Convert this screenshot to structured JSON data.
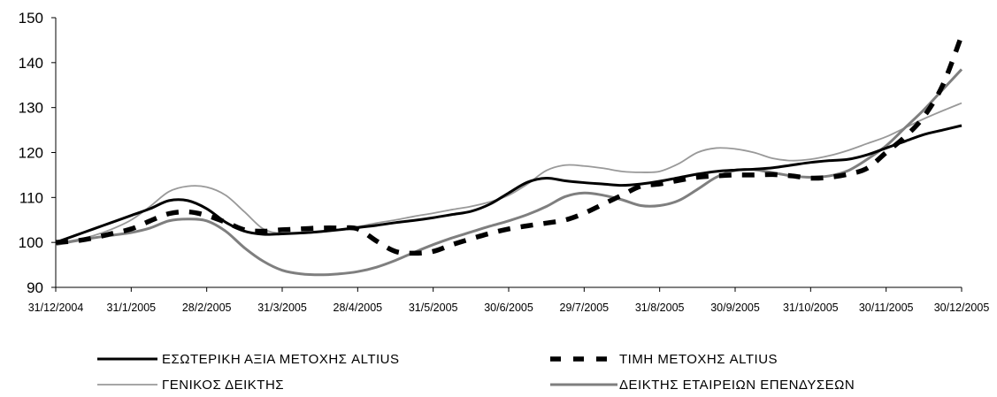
{
  "chart_data": {
    "type": "line",
    "title": "",
    "xlabel": "",
    "ylabel": "",
    "ylim": [
      90,
      150
    ],
    "yticks": [
      90,
      100,
      110,
      120,
      130,
      140,
      150
    ],
    "grid": false,
    "legend_position": "bottom",
    "categories": [
      "31/12/2004",
      "31/1/2005",
      "28/2/2005",
      "31/3/2005",
      "28/4/2005",
      "31/5/2005",
      "30/6/2005",
      "29/7/2005",
      "31/8/2005",
      "30/9/2005",
      "31/10/2005",
      "30/11/2005",
      "30/12/2005"
    ],
    "series": [
      {
        "name": "ΕΣΩΤΕΡΙΚΗ ΑΞΙΑ ΜΕΤΟΧΗΣ ALTIUS",
        "color": "#000000",
        "style": "solid-thick",
        "x": [
          0,
          0.25,
          0.5,
          0.75,
          1,
          1.25,
          1.5,
          1.75,
          2,
          2.25,
          2.5,
          2.75,
          3,
          3.25,
          3.5,
          3.75,
          4,
          4.25,
          4.5,
          4.75,
          5,
          5.25,
          5.5,
          5.75,
          6,
          6.25,
          6.5,
          6.75,
          7,
          7.25,
          7.5,
          7.75,
          8,
          8.25,
          8.5,
          8.75,
          9,
          9.25,
          9.5,
          9.75,
          10,
          10.25,
          10.5,
          10.75,
          11,
          11.25,
          11.5,
          11.75,
          12
        ],
        "values": [
          100,
          101.5,
          103,
          104.5,
          106,
          107.5,
          109.3,
          109.3,
          107.5,
          104.5,
          102.5,
          101.8,
          101.9,
          102.1,
          102.4,
          102.8,
          103.3,
          103.8,
          104.4,
          104.9,
          105.5,
          106.2,
          106.9,
          108.5,
          111,
          113.4,
          114.3,
          113.7,
          113.3,
          113,
          112.7,
          113,
          113.6,
          114.4,
          115.2,
          115.8,
          116.1,
          116.3,
          116.6,
          117.2,
          117.8,
          118.2,
          118.5,
          119.5,
          121,
          122.5,
          124,
          125,
          126
        ]
      },
      {
        "name": "ΤΙΜΗ ΜΕΤΟΧΗΣ ALTIUS",
        "color": "#000000",
        "style": "dashed-thick",
        "x": [
          0,
          0.25,
          0.5,
          0.75,
          1,
          1.25,
          1.5,
          1.75,
          2,
          2.25,
          2.5,
          2.75,
          3,
          3.25,
          3.5,
          3.75,
          4,
          4.25,
          4.5,
          4.75,
          5,
          5.25,
          5.5,
          5.75,
          6,
          6.25,
          6.5,
          6.75,
          7,
          7.25,
          7.5,
          7.75,
          8,
          8.25,
          8.5,
          8.75,
          9,
          9.25,
          9.5,
          9.75,
          10,
          10.25,
          10.5,
          10.75,
          11,
          11.25,
          11.5,
          11.75,
          12
        ],
        "values": [
          100,
          100.3,
          101,
          102,
          103,
          104.8,
          106.4,
          106.8,
          106,
          104.5,
          102.8,
          102.5,
          102.8,
          103,
          103.2,
          103.2,
          103,
          100.3,
          98,
          97.6,
          98,
          99.5,
          100.8,
          102,
          103,
          103.7,
          104.3,
          105,
          106.5,
          108.5,
          110.5,
          112.5,
          113,
          113.8,
          114.5,
          114.8,
          115,
          115,
          115.1,
          114.8,
          114.3,
          114.5,
          115.2,
          116.5,
          120,
          123.5,
          128,
          135,
          146
        ]
      },
      {
        "name": "ΓΕΝΙΚΟΣ ΔΕΙΚΤΗΣ",
        "color": "#999999",
        "style": "solid-thin",
        "x": [
          0,
          0.25,
          0.5,
          0.75,
          1,
          1.25,
          1.5,
          1.75,
          2,
          2.25,
          2.5,
          2.75,
          3,
          3.25,
          3.5,
          3.75,
          4,
          4.25,
          4.5,
          4.75,
          5,
          5.25,
          5.5,
          5.75,
          6,
          6.25,
          6.5,
          6.75,
          7,
          7.25,
          7.5,
          7.75,
          8,
          8.25,
          8.5,
          8.75,
          9,
          9.25,
          9.5,
          9.75,
          10,
          10.25,
          10.5,
          10.75,
          11,
          11.25,
          11.5,
          11.75,
          12
        ],
        "values": [
          100,
          100.5,
          101.5,
          103,
          105,
          108,
          111.3,
          112.5,
          112.3,
          110.5,
          106.8,
          103,
          102,
          102,
          102.3,
          102.8,
          103.5,
          104.3,
          105,
          105.8,
          106.5,
          107.3,
          108,
          109,
          110.5,
          113,
          116,
          117.2,
          117,
          116.5,
          115.8,
          115.6,
          115.8,
          117.5,
          120,
          121,
          120.8,
          120,
          118.7,
          118.2,
          118.5,
          119.3,
          120.5,
          122,
          123.5,
          125.5,
          127.5,
          129.3,
          131
        ]
      },
      {
        "name": "ΔΕΙΚΤΗΣ ΕΤΑΙΡΕΙΩΝ ΕΠΕΝΔΥΣΕΩΝ",
        "color": "#7f7f7f",
        "style": "solid-thick",
        "x": [
          0,
          0.25,
          0.5,
          0.75,
          1,
          1.25,
          1.5,
          1.75,
          2,
          2.25,
          2.5,
          2.75,
          3,
          3.25,
          3.5,
          3.75,
          4,
          4.25,
          4.5,
          4.75,
          5,
          5.25,
          5.5,
          5.75,
          6,
          6.25,
          6.5,
          6.75,
          7,
          7.25,
          7.5,
          7.75,
          8,
          8.25,
          8.5,
          8.75,
          9,
          9.25,
          9.5,
          9.75,
          10,
          10.25,
          10.5,
          10.75,
          11,
          11.25,
          11.5,
          11.75,
          12
        ],
        "values": [
          99.5,
          100.3,
          101,
          101.6,
          102.2,
          103.2,
          104.8,
          105.2,
          104.8,
          102.5,
          98.8,
          95.8,
          93.8,
          93,
          92.8,
          93,
          93.5,
          94.5,
          96,
          97.8,
          99.5,
          101,
          102.3,
          103.6,
          104.8,
          106.2,
          108,
          110.2,
          111,
          110.5,
          109.5,
          108.2,
          108.2,
          109.3,
          111.8,
          114.5,
          116,
          116.2,
          115.5,
          114.8,
          114.5,
          114.8,
          116,
          118.5,
          121.5,
          125.5,
          129.5,
          134,
          138.5
        ]
      }
    ]
  }
}
